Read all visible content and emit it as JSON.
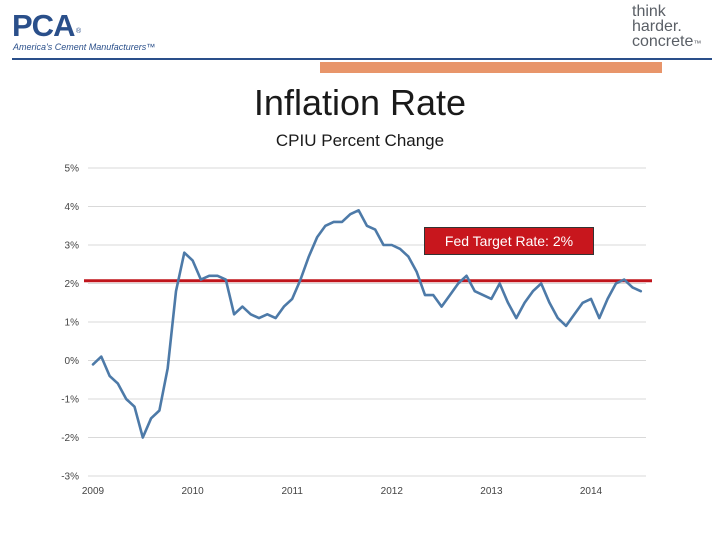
{
  "header": {
    "left_logo": {
      "name": "PCA",
      "reg": "®",
      "tagline": "America's Cement Manufacturers™"
    },
    "right_logo": {
      "lines": [
        "think",
        "harder.",
        "concrete"
      ],
      "mark": "™"
    }
  },
  "colors": {
    "brand_blue": "#2a4f8a",
    "accent_orange": "#e8956a",
    "series": "#4d7aa8",
    "target": "#c0151c"
  },
  "chart_data": {
    "type": "line",
    "title": "Inflation Rate",
    "subtitle": "CPIU Percent Change",
    "ylim": [
      -3,
      5
    ],
    "y_ticks": [
      5,
      4,
      3,
      2,
      1,
      0,
      -1,
      -2,
      -3
    ],
    "y_tick_labels": [
      "5%",
      "4%",
      "3%",
      "2%",
      "1%",
      "0%",
      "-1%",
      "-2%",
      "-3%"
    ],
    "x_ticks": [
      0,
      12,
      24,
      36,
      48,
      60
    ],
    "x_tick_labels": [
      "2009",
      "2010",
      "2011",
      "2012",
      "2013",
      "2014"
    ],
    "xlim": [
      0,
      67
    ],
    "grid": true,
    "series": [
      {
        "values": [
          -0.1,
          0.1,
          -0.4,
          -0.6,
          -1.0,
          -1.2,
          -2.0,
          -1.5,
          -1.3,
          -0.2,
          1.8,
          2.8,
          2.6,
          2.1,
          2.2,
          2.2,
          2.1,
          1.2,
          1.4,
          1.2,
          1.1,
          1.2,
          1.1,
          1.4,
          1.6,
          2.1,
          2.7,
          3.2,
          3.5,
          3.6,
          3.6,
          3.8,
          3.9,
          3.5,
          3.4,
          3.0,
          3.0,
          2.9,
          2.7,
          2.3,
          1.7,
          1.7,
          1.4,
          1.7,
          2.0,
          2.2,
          1.8,
          1.7,
          1.6,
          2.0,
          1.5,
          1.1,
          1.5,
          1.8,
          2.0,
          1.5,
          1.1,
          0.9,
          1.2,
          1.5,
          1.6,
          1.1,
          1.6,
          2.0,
          2.1,
          1.9,
          1.8
        ]
      }
    ],
    "reference_line": {
      "value": 2.07,
      "label": "Fed Target Rate: 2%"
    }
  }
}
